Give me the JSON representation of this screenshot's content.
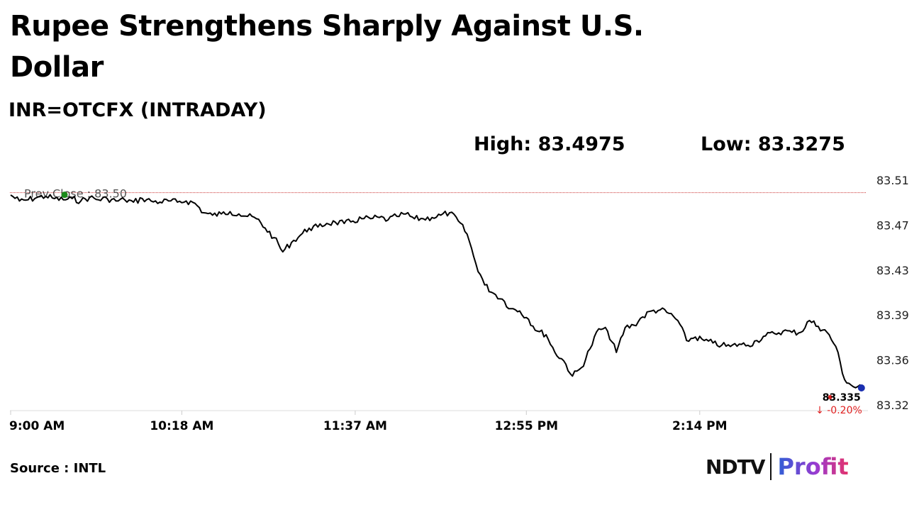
{
  "header": {
    "title": "Rupee Strengthens Sharply Against U.S. Dollar",
    "subtitle": "INR=OTCFX (INTRADAY)",
    "high_label": "High: 83.4975",
    "low_label": "Low: 83.3275"
  },
  "footer": {
    "source": "Source : INTL",
    "logo_ndtv": "NDTV",
    "logo_profit": "Profit"
  },
  "colors": {
    "line": "#000000",
    "prev_close_line": "#cc3333",
    "prev_close_dot": "#1a8a1a",
    "last_dot": "#1a2fb0",
    "change_red": "#e02020"
  },
  "chart_data": {
    "type": "line",
    "title": "INR=OTCFX (INTRADAY)",
    "x_ticks": [
      "9:00 AM",
      "10:18 AM",
      "11:37 AM",
      "12:55 PM",
      "2:14 PM"
    ],
    "x_tick_minutes": [
      540,
      618,
      697,
      775,
      854
    ],
    "xlim_minutes": [
      540,
      930
    ],
    "y_ticks": [
      "83.51",
      "83.47",
      "83.43",
      "83.39",
      "83.36",
      "83.32"
    ],
    "ylim": [
      83.32,
      83.51
    ],
    "prev_close": {
      "label": "Prev Close : 83.50",
      "value": 83.5
    },
    "last": {
      "value_label": "83.335",
      "change_label": "↓ -0.20%",
      "value": 83.335
    },
    "high": 83.4975,
    "low": 83.3275,
    "series": [
      {
        "x_minutes": [
          540,
          544,
          548,
          552,
          556,
          560,
          564,
          568,
          572,
          576,
          580,
          584,
          588,
          592,
          596,
          600,
          604,
          608,
          612,
          616,
          620,
          624,
          628,
          632,
          636,
          640,
          644,
          648,
          652,
          656,
          660,
          664,
          668,
          672,
          676,
          680,
          684,
          688,
          692,
          696,
          700,
          704,
          708,
          712,
          716,
          720,
          724,
          728,
          732,
          736,
          740,
          744,
          748,
          752,
          756,
          760,
          764,
          768,
          772,
          776,
          780,
          784,
          788,
          792,
          796,
          800,
          804,
          808,
          812,
          816,
          820,
          824,
          828,
          832,
          836,
          840,
          844,
          848,
          852,
          856,
          860,
          864,
          868,
          872,
          876,
          880,
          884,
          888,
          892,
          896,
          900,
          904,
          908,
          912,
          916,
          920,
          924,
          928
        ],
        "values": [
          83.498,
          83.493,
          83.494,
          83.496,
          83.497,
          83.495,
          83.494,
          83.495,
          83.493,
          83.496,
          83.494,
          83.495,
          83.493,
          83.494,
          83.492,
          83.495,
          83.493,
          83.492,
          83.493,
          83.492,
          83.493,
          83.491,
          83.483,
          83.481,
          83.482,
          83.484,
          83.482,
          83.48,
          83.478,
          83.47,
          83.462,
          83.45,
          83.458,
          83.464,
          83.47,
          83.471,
          83.474,
          83.475,
          83.474,
          83.476,
          83.478,
          83.478,
          83.479,
          83.477,
          83.48,
          83.482,
          83.478,
          83.478,
          83.479,
          83.481,
          83.483,
          83.476,
          83.465,
          83.44,
          83.422,
          83.415,
          83.41,
          83.402,
          83.4,
          83.393,
          83.383,
          83.38,
          83.365,
          83.358,
          83.345,
          83.352,
          83.368,
          83.385,
          83.383,
          83.365,
          83.386,
          83.388,
          83.395,
          83.4,
          83.401,
          83.398,
          83.392,
          83.375,
          83.378,
          83.375,
          83.373,
          83.371,
          83.37,
          83.372,
          83.371,
          83.375,
          83.379,
          83.381,
          83.383,
          83.382,
          83.382,
          83.392,
          83.387,
          83.382,
          83.37,
          83.342,
          83.336,
          83.335
        ]
      }
    ]
  }
}
